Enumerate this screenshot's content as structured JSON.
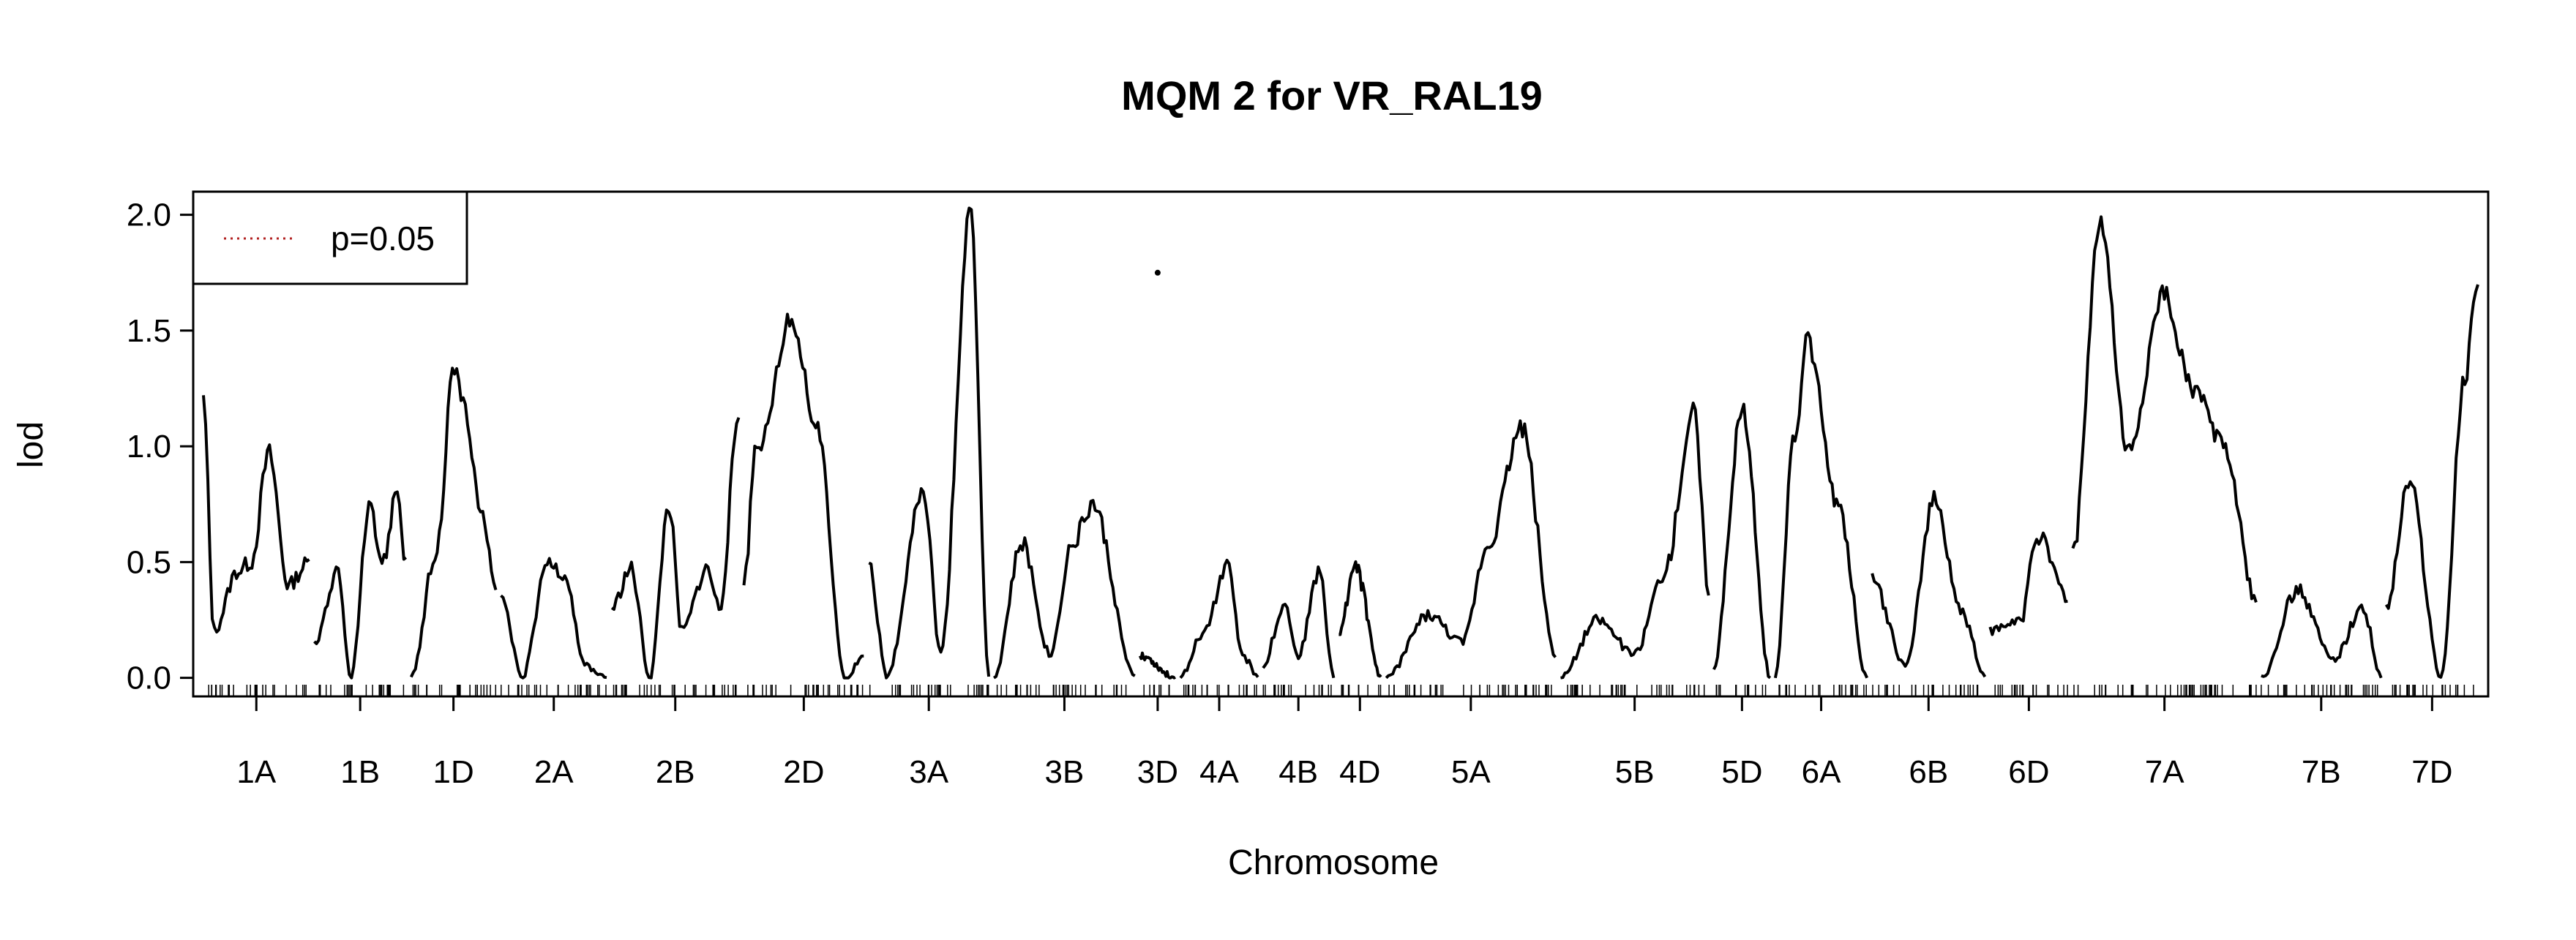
{
  "chart_data": {
    "type": "line",
    "title": "MQM 2 for VR_RAL19",
    "xlabel": "Chromosome",
    "ylabel": "lod",
    "ylim": [
      -0.08,
      2.1
    ],
    "yticks": [
      "0.0",
      "0.5",
      "1.0",
      "1.5",
      "2.0"
    ],
    "grid": false,
    "legend": {
      "placement": "top-left",
      "entries": [
        {
          "label": "p=0.05",
          "style": "dotted",
          "color": "#b22222"
        }
      ]
    },
    "stray_point": {
      "chromosome": "3D",
      "lod": 1.75
    },
    "chromosomes": [
      {
        "name": "1A",
        "length": 30,
        "peaks": [
          [
            0.0,
            1.2
          ],
          [
            0.1,
            0.2
          ],
          [
            0.32,
            0.46
          ],
          [
            0.45,
            0.5
          ],
          [
            0.62,
            0.97
          ],
          [
            0.8,
            0.4
          ],
          [
            1.0,
            0.5
          ]
        ]
      },
      {
        "name": "1B",
        "length": 26,
        "peaks": [
          [
            0.0,
            0.15
          ],
          [
            0.25,
            0.45
          ],
          [
            0.4,
            0.0
          ],
          [
            0.6,
            0.72
          ],
          [
            0.75,
            0.5
          ],
          [
            0.9,
            0.82
          ],
          [
            1.0,
            0.5
          ]
        ]
      },
      {
        "name": "1D",
        "length": 24,
        "peaks": [
          [
            0.0,
            0.0
          ],
          [
            0.3,
            0.55
          ],
          [
            0.5,
            1.32
          ],
          [
            0.65,
            1.15
          ],
          [
            0.8,
            0.75
          ],
          [
            1.0,
            0.4
          ]
        ]
      },
      {
        "name": "2A",
        "length": 30,
        "peaks": [
          [
            0.0,
            0.35
          ],
          [
            0.2,
            0.0
          ],
          [
            0.45,
            0.5
          ],
          [
            0.6,
            0.45
          ],
          [
            0.8,
            0.05
          ],
          [
            1.0,
            0.0
          ]
        ]
      },
      {
        "name": "2B",
        "length": 36,
        "peaks": [
          [
            0.0,
            0.3
          ],
          [
            0.15,
            0.47
          ],
          [
            0.3,
            0.0
          ],
          [
            0.45,
            0.75
          ],
          [
            0.55,
            0.2
          ],
          [
            0.75,
            0.47
          ],
          [
            0.85,
            0.3
          ],
          [
            1.0,
            1.13
          ]
        ]
      },
      {
        "name": "2D",
        "length": 34,
        "peaks": [
          [
            0.0,
            0.4
          ],
          [
            0.1,
            0.97
          ],
          [
            0.4,
            1.55
          ],
          [
            0.6,
            1.1
          ],
          [
            0.85,
            0.0
          ],
          [
            1.0,
            0.1
          ]
        ]
      },
      {
        "name": "3A",
        "length": 34,
        "peaks": [
          [
            0.0,
            0.5
          ],
          [
            0.15,
            0.0
          ],
          [
            0.45,
            0.82
          ],
          [
            0.6,
            0.1
          ],
          [
            0.85,
            2.03
          ],
          [
            1.0,
            0.0
          ]
        ]
      },
      {
        "name": "3B",
        "length": 40,
        "peaks": [
          [
            0.0,
            0.0
          ],
          [
            0.2,
            0.58
          ],
          [
            0.4,
            0.1
          ],
          [
            0.55,
            0.57
          ],
          [
            0.7,
            0.75
          ],
          [
            1.0,
            0.0
          ]
        ]
      },
      {
        "name": "3D",
        "length": 10,
        "peaks": [
          [
            0.0,
            0.1
          ],
          [
            1.0,
            0.0
          ]
        ]
      },
      {
        "name": "4A",
        "length": 22,
        "peaks": [
          [
            0.0,
            0.0
          ],
          [
            0.3,
            0.2
          ],
          [
            0.6,
            0.48
          ],
          [
            0.8,
            0.1
          ],
          [
            1.0,
            0.0
          ]
        ]
      },
      {
        "name": "4B",
        "length": 20,
        "peaks": [
          [
            0.0,
            0.05
          ],
          [
            0.3,
            0.32
          ],
          [
            0.5,
            0.1
          ],
          [
            0.8,
            0.46
          ],
          [
            1.0,
            0.0
          ]
        ]
      },
      {
        "name": "4D",
        "length": 12,
        "peaks": [
          [
            0.0,
            0.2
          ],
          [
            0.4,
            0.47
          ],
          [
            1.0,
            0.0
          ]
        ]
      },
      {
        "name": "5A",
        "length": 48,
        "peaks": [
          [
            0.0,
            0.0
          ],
          [
            0.25,
            0.27
          ],
          [
            0.45,
            0.15
          ],
          [
            0.6,
            0.57
          ],
          [
            0.8,
            1.08
          ],
          [
            1.0,
            0.1
          ]
        ]
      },
      {
        "name": "5B",
        "length": 42,
        "peaks": [
          [
            0.0,
            0.0
          ],
          [
            0.25,
            0.25
          ],
          [
            0.5,
            0.1
          ],
          [
            0.7,
            0.45
          ],
          [
            0.9,
            1.15
          ],
          [
            1.0,
            0.38
          ]
        ]
      },
      {
        "name": "5D",
        "length": 16,
        "peaks": [
          [
            0.0,
            0.05
          ],
          [
            0.5,
            1.16
          ],
          [
            1.0,
            0.0
          ]
        ]
      },
      {
        "name": "6A",
        "length": 26,
        "peaks": [
          [
            0.0,
            0.0
          ],
          [
            0.2,
            1.01
          ],
          [
            0.35,
            1.45
          ],
          [
            0.7,
            0.72
          ],
          [
            1.0,
            0.0
          ]
        ]
      },
      {
        "name": "6B",
        "length": 32,
        "peaks": [
          [
            0.0,
            0.42
          ],
          [
            0.3,
            0.05
          ],
          [
            0.55,
            0.78
          ],
          [
            0.8,
            0.28
          ],
          [
            1.0,
            0.0
          ]
        ]
      },
      {
        "name": "6D",
        "length": 22,
        "peaks": [
          [
            0.0,
            0.2
          ],
          [
            0.4,
            0.25
          ],
          [
            0.6,
            0.62
          ],
          [
            1.0,
            0.35
          ]
        ]
      },
      {
        "name": "7A",
        "length": 52,
        "peaks": [
          [
            0.0,
            0.53
          ],
          [
            0.15,
            1.97
          ],
          [
            0.3,
            0.97
          ],
          [
            0.5,
            1.66
          ],
          [
            0.65,
            1.25
          ],
          [
            0.82,
            1.02
          ],
          [
            1.0,
            0.33
          ]
        ]
      },
      {
        "name": "7B",
        "length": 34,
        "peaks": [
          [
            0.0,
            0.0
          ],
          [
            0.3,
            0.38
          ],
          [
            0.6,
            0.08
          ],
          [
            0.85,
            0.3
          ],
          [
            1.0,
            0.0
          ]
        ]
      },
      {
        "name": "7D",
        "length": 26,
        "peaks": [
          [
            0.0,
            0.3
          ],
          [
            0.25,
            0.85
          ],
          [
            0.6,
            0.0
          ],
          [
            0.85,
            1.28
          ],
          [
            1.0,
            1.74
          ]
        ]
      }
    ]
  }
}
